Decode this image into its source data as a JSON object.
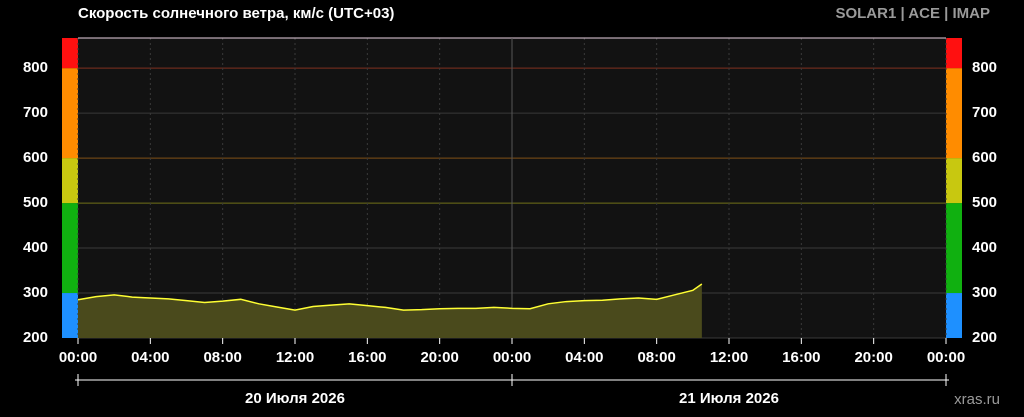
{
  "chart_data": {
    "type": "area-line",
    "title": "Скорость солнечного ветра, км/с (UTC+03)",
    "source": "SOLAR1 | ACE | IMAP",
    "watermark": "xras.ru",
    "date_labels": [
      "20 Июля 2026",
      "21 Июля 2026"
    ],
    "x": [
      0,
      1,
      2,
      3,
      4,
      5,
      6,
      7,
      8,
      9,
      10,
      11,
      12,
      13,
      14,
      15,
      16,
      17,
      18,
      19,
      20,
      21,
      22,
      23,
      24,
      25,
      26,
      27,
      28,
      29,
      30,
      31,
      32,
      33,
      34,
      34.5
    ],
    "series": [
      {
        "name": "Скорость",
        "color": "#ffff33",
        "fill": "#4a4a1c",
        "values": [
          285,
          292,
          296,
          291,
          289,
          287,
          283,
          279,
          282,
          286,
          276,
          269,
          262,
          270,
          273,
          276,
          272,
          268,
          262,
          263,
          265,
          266,
          266,
          268,
          266,
          265,
          276,
          281,
          283,
          284,
          287,
          289,
          286,
          296,
          306,
          320
        ]
      }
    ],
    "xlim": [
      0,
      48
    ],
    "xticks": [
      {
        "value": 0,
        "label": "00:00"
      },
      {
        "value": 4,
        "label": "04:00"
      },
      {
        "value": 8,
        "label": "08:00"
      },
      {
        "value": 12,
        "label": "12:00"
      },
      {
        "value": 16,
        "label": "16:00"
      },
      {
        "value": 20,
        "label": "20:00"
      },
      {
        "value": 24,
        "label": "00:00"
      },
      {
        "value": 28,
        "label": "04:00"
      },
      {
        "value": 32,
        "label": "08:00"
      },
      {
        "value": 36,
        "label": "12:00"
      },
      {
        "value": 40,
        "label": "16:00"
      },
      {
        "value": 44,
        "label": "20:00"
      },
      {
        "value": 48,
        "label": "00:00"
      }
    ],
    "ylim": [
      200,
      867
    ],
    "yticks": [
      200,
      300,
      400,
      500,
      600,
      700,
      800
    ],
    "color_bands": [
      {
        "from": 200,
        "to": 300,
        "color": "#1e90ff"
      },
      {
        "from": 300,
        "to": 500,
        "color": "#10b010"
      },
      {
        "from": 500,
        "to": 600,
        "color": "#c8c810"
      },
      {
        "from": 600,
        "to": 800,
        "color": "#ff8c00"
      },
      {
        "from": 800,
        "to": 867,
        "color": "#ff1010"
      }
    ],
    "thresholds": [
      {
        "value": 500,
        "color": "#6b6b12"
      },
      {
        "value": 600,
        "color": "#7a4a10"
      },
      {
        "value": 800,
        "color": "#7a2a18"
      }
    ],
    "grid": true
  }
}
